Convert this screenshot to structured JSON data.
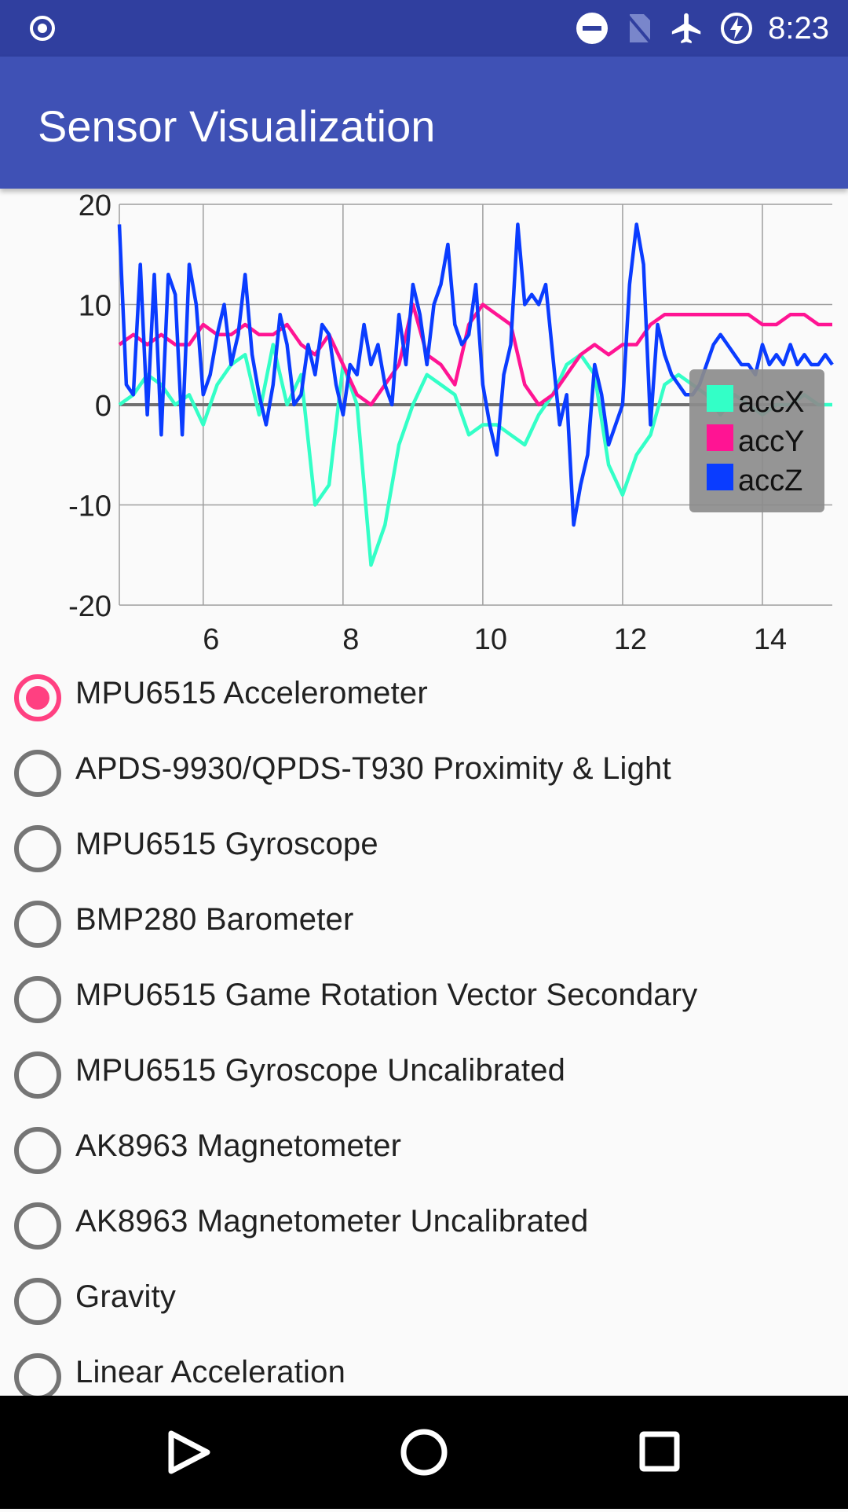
{
  "status_bar": {
    "time": "8:23",
    "icons": [
      "radio-record-icon",
      "do-not-disturb-icon",
      "no-sim-icon",
      "airplane-icon",
      "battery-charging-icon"
    ]
  },
  "app_bar": {
    "title": "Sensor Visualization"
  },
  "chart_data": {
    "type": "line",
    "x_ticks": [
      6,
      8,
      10,
      12,
      14
    ],
    "y_ticks": [
      20,
      10,
      0,
      -10,
      -20
    ],
    "ylim": [
      -20,
      20
    ],
    "xlim": [
      4.8,
      15.0
    ],
    "grid": true,
    "legend_position": "right-middle",
    "series": [
      {
        "name": "accX",
        "color": "#33FFC7",
        "x": [
          4.8,
          5.0,
          5.2,
          5.4,
          5.6,
          5.8,
          6.0,
          6.2,
          6.4,
          6.6,
          6.8,
          7.0,
          7.2,
          7.4,
          7.6,
          7.8,
          8.0,
          8.2,
          8.4,
          8.6,
          8.8,
          9.0,
          9.2,
          9.4,
          9.6,
          9.8,
          10.0,
          10.2,
          10.4,
          10.6,
          10.8,
          11.0,
          11.2,
          11.4,
          11.6,
          11.8,
          12.0,
          12.2,
          12.4,
          12.6,
          12.8,
          13.0,
          13.2,
          13.4,
          13.6,
          13.8,
          14.0,
          14.2,
          14.4,
          14.6,
          14.8,
          15.0
        ],
        "y": [
          0,
          1,
          3,
          2,
          0,
          1,
          -2,
          2,
          4,
          5,
          -1,
          6,
          0,
          3,
          -10,
          -8,
          4,
          0,
          -16,
          -12,
          -4,
          0,
          3,
          2,
          1,
          -3,
          -2,
          -2,
          -3,
          -4,
          -1,
          1,
          4,
          5,
          3,
          -6,
          -9,
          -5,
          -3,
          2,
          3,
          2,
          1,
          -1,
          1,
          0,
          -1,
          0,
          0,
          1,
          0,
          0
        ]
      },
      {
        "name": "accY",
        "color": "#FF1493",
        "x": [
          4.8,
          5.0,
          5.2,
          5.4,
          5.6,
          5.8,
          6.0,
          6.2,
          6.4,
          6.6,
          6.8,
          7.0,
          7.2,
          7.4,
          7.6,
          7.8,
          8.0,
          8.2,
          8.4,
          8.6,
          8.8,
          9.0,
          9.2,
          9.4,
          9.6,
          9.8,
          10.0,
          10.2,
          10.4,
          10.6,
          10.8,
          11.0,
          11.2,
          11.4,
          11.6,
          11.8,
          12.0,
          12.2,
          12.4,
          12.6,
          12.8,
          13.0,
          13.2,
          13.4,
          13.6,
          13.8,
          14.0,
          14.2,
          14.4,
          14.6,
          14.8,
          15.0
        ],
        "y": [
          6,
          7,
          6,
          7,
          6,
          6,
          8,
          7,
          7,
          8,
          7,
          7,
          8,
          6,
          5,
          7,
          4,
          1,
          0,
          2,
          4,
          10,
          5,
          4,
          2,
          8,
          10,
          9,
          8,
          2,
          0,
          1,
          3,
          5,
          6,
          5,
          6,
          6,
          8,
          9,
          9,
          9,
          9,
          9,
          9,
          9,
          8,
          8,
          9,
          9,
          8,
          8
        ]
      },
      {
        "name": "accZ",
        "color": "#0A3CFF",
        "x": [
          4.8,
          4.9,
          5.0,
          5.1,
          5.2,
          5.3,
          5.4,
          5.5,
          5.6,
          5.7,
          5.8,
          5.9,
          6.0,
          6.1,
          6.2,
          6.3,
          6.4,
          6.5,
          6.6,
          6.7,
          6.8,
          6.9,
          7.0,
          7.1,
          7.2,
          7.3,
          7.4,
          7.5,
          7.6,
          7.7,
          7.8,
          7.9,
          8.0,
          8.1,
          8.2,
          8.3,
          8.4,
          8.5,
          8.6,
          8.7,
          8.8,
          8.9,
          9.0,
          9.1,
          9.2,
          9.3,
          9.4,
          9.5,
          9.6,
          9.7,
          9.8,
          9.9,
          10.0,
          10.1,
          10.2,
          10.3,
          10.4,
          10.5,
          10.6,
          10.7,
          10.8,
          10.9,
          11.0,
          11.1,
          11.2,
          11.3,
          11.4,
          11.5,
          11.6,
          11.7,
          11.8,
          11.9,
          12.0,
          12.1,
          12.2,
          12.3,
          12.4,
          12.5,
          12.6,
          12.7,
          12.8,
          12.9,
          13.0,
          13.1,
          13.2,
          13.3,
          13.4,
          13.5,
          13.6,
          13.7,
          13.8,
          13.9,
          14.0,
          14.1,
          14.2,
          14.3,
          14.4,
          14.5,
          14.6,
          14.7,
          14.8,
          14.9,
          15.0
        ],
        "y": [
          18,
          2,
          1,
          14,
          -1,
          13,
          -3,
          13,
          11,
          -3,
          14,
          10,
          1,
          3,
          7,
          10,
          4,
          7,
          13,
          5,
          1,
          -2,
          2,
          9,
          6,
          0,
          1,
          6,
          3,
          8,
          7,
          2,
          -1,
          4,
          3,
          8,
          4,
          6,
          2,
          0,
          9,
          4,
          12,
          9,
          4,
          10,
          12,
          16,
          8,
          6,
          7,
          12,
          2,
          -2,
          -5,
          3,
          6,
          18,
          10,
          11,
          10,
          12,
          5,
          -2,
          1,
          -12,
          -8,
          -5,
          4,
          1,
          -4,
          -2,
          0,
          12,
          18,
          14,
          -2,
          8,
          5,
          3,
          2,
          1,
          1,
          2,
          4,
          6,
          7,
          6,
          5,
          4,
          4,
          3,
          6,
          4,
          5,
          4,
          6,
          4,
          5,
          4,
          4,
          5,
          4
        ]
      }
    ]
  },
  "sensors": {
    "selected_index": 0,
    "items": [
      "MPU6515 Accelerometer",
      "APDS-9930/QPDS-T930 Proximity & Light",
      "MPU6515 Gyroscope",
      "BMP280 Barometer",
      "MPU6515 Game Rotation Vector Secondary",
      "MPU6515 Gyroscope Uncalibrated",
      "AK8963 Magnetometer",
      "AK8963 Magnetometer Uncalibrated",
      "Gravity",
      "Linear Acceleration"
    ]
  },
  "nav_bar": {
    "icons": [
      "back-icon",
      "home-icon",
      "recents-icon"
    ]
  }
}
